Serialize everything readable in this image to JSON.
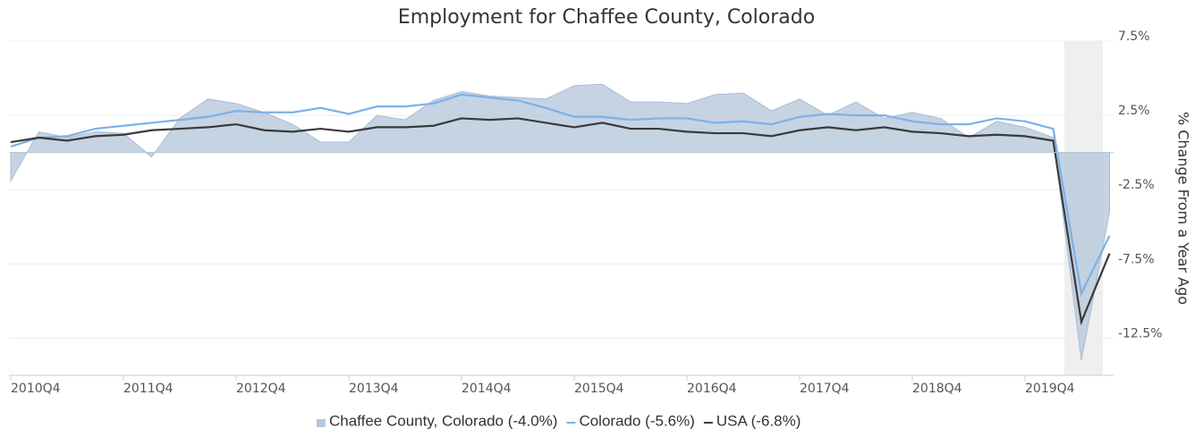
{
  "chart_data": {
    "type": "line",
    "title": "Employment for Chaffee County, Colorado",
    "y_axis_label": "% Change From a Year Ago",
    "categories": [
      "2010Q4",
      null,
      null,
      null,
      "2011Q4",
      null,
      null,
      null,
      "2012Q4",
      null,
      null,
      null,
      "2013Q4",
      null,
      null,
      null,
      "2014Q4",
      null,
      null,
      null,
      "2015Q4",
      null,
      null,
      null,
      "2016Q4",
      null,
      null,
      null,
      "2017Q4",
      null,
      null,
      null,
      "2018Q4",
      null,
      null,
      null,
      "2019Q4",
      null,
      null,
      null
    ],
    "series": [
      {
        "name": "Chaffee County, Colorado (-4.0%)",
        "color": "#b8c8dc",
        "style": "area",
        "values": [
          -1.9,
          1.4,
          1.0,
          1.4,
          1.3,
          -0.3,
          2.3,
          3.6,
          3.3,
          2.7,
          1.9,
          0.7,
          0.7,
          2.5,
          2.2,
          3.5,
          4.1,
          3.8,
          3.7,
          3.6,
          4.5,
          4.6,
          3.4,
          3.4,
          3.3,
          3.9,
          4.0,
          2.8,
          3.6,
          2.5,
          3.4,
          2.3,
          2.7,
          2.3,
          1.0,
          2.1,
          1.7,
          1.0,
          -14.0,
          -4.0
        ]
      },
      {
        "name": "Colorado (-5.6%)",
        "color": "#7cb1e8",
        "style": "line",
        "values": [
          0.4,
          1.0,
          1.1,
          1.6,
          1.8,
          2.0,
          2.2,
          2.4,
          2.8,
          2.7,
          2.7,
          3.0,
          2.6,
          3.1,
          3.1,
          3.3,
          3.9,
          3.7,
          3.5,
          3.0,
          2.4,
          2.4,
          2.2,
          2.3,
          2.3,
          2.0,
          2.1,
          1.9,
          2.4,
          2.6,
          2.5,
          2.5,
          2.1,
          1.9,
          1.9,
          2.3,
          2.1,
          1.6,
          -9.5,
          -5.6
        ]
      },
      {
        "name": "USA (-6.8%)",
        "color": "#3a3a3a",
        "style": "line",
        "values": [
          0.7,
          1.0,
          0.8,
          1.1,
          1.2,
          1.5,
          1.6,
          1.7,
          1.9,
          1.5,
          1.4,
          1.6,
          1.4,
          1.7,
          1.7,
          1.8,
          2.3,
          2.2,
          2.3,
          2.0,
          1.7,
          2.0,
          1.6,
          1.6,
          1.4,
          1.3,
          1.3,
          1.1,
          1.5,
          1.7,
          1.5,
          1.7,
          1.4,
          1.3,
          1.1,
          1.2,
          1.1,
          0.8,
          -11.4,
          -6.8
        ]
      }
    ],
    "ylim": [
      -15,
      7.5
    ],
    "yticks": [
      {
        "value": 7.5,
        "label": "7.5%"
      },
      {
        "value": 2.5,
        "label": "2.5%"
      },
      {
        "value": -2.5,
        "label": "-2.5%"
      },
      {
        "value": -7.5,
        "label": "-7.5%"
      },
      {
        "value": -12.5,
        "label": "-12.5%"
      }
    ],
    "grid": true
  }
}
